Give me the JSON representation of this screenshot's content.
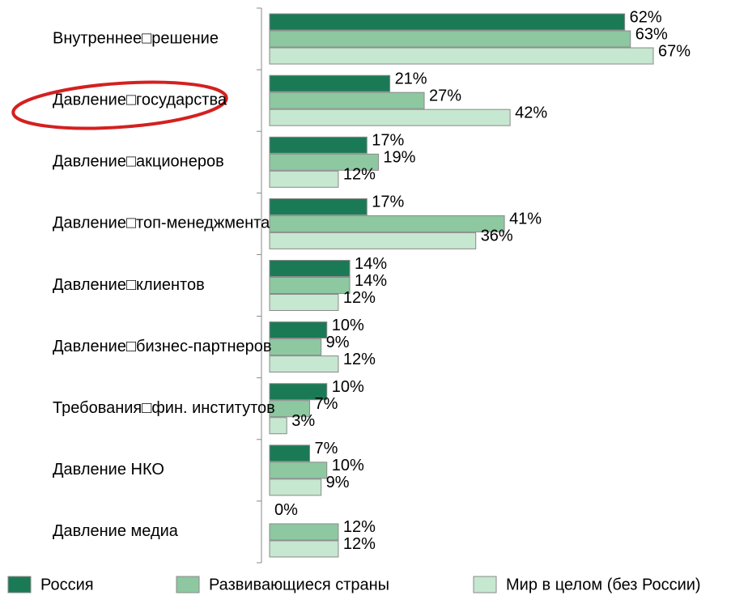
{
  "chart_data": {
    "type": "barh",
    "categories": [
      "Внутреннее□решение",
      "Давление□государства",
      "Давление□акционеров",
      "Давление□топ-менеджмента",
      "Давление□клиентов",
      "Давление□бизнес-партнеров",
      "Требования□фин. институтов",
      "Давление НКО",
      "Давление медиа"
    ],
    "series": [
      {
        "name": "Россия",
        "color": "#1b7a56",
        "values": [
          62,
          21,
          17,
          17,
          14,
          10,
          10,
          7,
          0
        ],
        "value_labels": [
          "62%",
          "21%",
          "17%",
          "17%",
          "14%",
          "10%",
          "10%",
          "7%",
          "0%"
        ]
      },
      {
        "name": "Развивающиеся страны",
        "color": "#8dc8a0",
        "values": [
          63,
          27,
          19,
          41,
          14,
          9,
          7,
          10,
          12
        ],
        "value_labels": [
          "63%",
          "27%",
          "19%",
          "41%",
          "14%",
          "9%",
          "7%",
          "10%",
          "12%"
        ]
      },
      {
        "name": "Мир в целом (без России)",
        "color": "#c6e7d0",
        "values": [
          67,
          42,
          12,
          36,
          12,
          12,
          3,
          9,
          12
        ],
        "value_labels": [
          "67%",
          "42%",
          "12%",
          "36%",
          "12%",
          "12%",
          "3%",
          "9%",
          "12%"
        ]
      }
    ],
    "xlim": [
      0,
      80
    ],
    "legend": "bottom"
  }
}
